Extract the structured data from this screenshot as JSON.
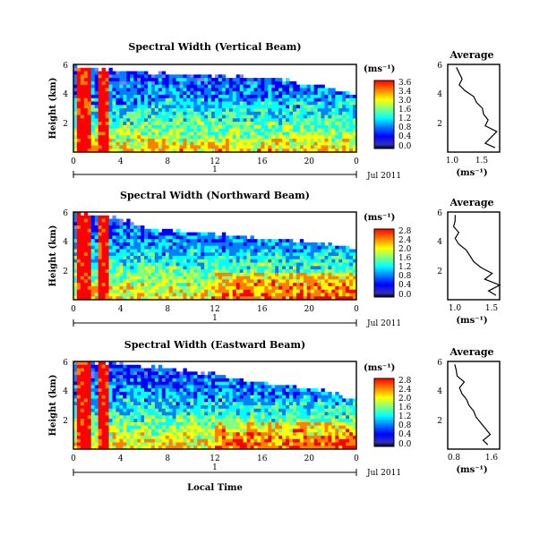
{
  "chart_data": [
    {
      "type": "heatmap",
      "title": "Spectral Width (Vertical Beam)",
      "ylabel": "Height (km)",
      "yticks": [
        "6",
        "4",
        "2"
      ],
      "ylim": [
        0,
        6
      ],
      "xticks": [
        "0",
        "4",
        "8",
        "12",
        "16",
        "20",
        "0"
      ],
      "xlim": [
        0,
        24
      ],
      "day_label": "1",
      "date_label": "Jul 2011",
      "colorbar": {
        "unit_label": "(ms⁻¹)",
        "ticks": [
          "3.6",
          "3.4",
          "3.0",
          "1.6",
          "1.2",
          "0.8",
          "0.4",
          "0.0"
        ],
        "range": [
          0.0,
          3.6
        ]
      },
      "series": [
        {
          "time_h": [
            0,
            4,
            8,
            12,
            16,
            20,
            24
          ],
          "top_km": [
            6,
            5.6,
            5.3,
            5.2,
            5.0,
            4.5,
            3.8
          ]
        },
        {
          "time_h": [
            0.3,
            0.8,
            2.4,
            3.1
          ],
          "value_note": "high"
        }
      ],
      "profile": {
        "title": "Average",
        "xticks": [
          "1.0",
          "1.5"
        ],
        "xlim": [
          0.8,
          1.7
        ],
        "yticks": [
          "6",
          "4",
          "2"
        ],
        "xlabel": "(ms⁻¹)",
        "height_km": [
          0.3,
          0.6,
          1.0,
          1.4,
          1.8,
          2.2,
          2.6,
          3.0,
          3.4,
          3.8,
          4.2,
          4.6,
          5.0,
          5.4,
          5.8
        ],
        "values": [
          1.62,
          1.45,
          1.55,
          1.65,
          1.45,
          1.5,
          1.42,
          1.4,
          1.3,
          1.25,
          1.1,
          1.0,
          1.05,
          1.0,
          0.95
        ]
      }
    },
    {
      "type": "heatmap",
      "title": "Spectral Width (Northward Beam)",
      "ylabel": "Height (km)",
      "yticks": [
        "6",
        "4",
        "2"
      ],
      "ylim": [
        0,
        6
      ],
      "xticks": [
        "0",
        "4",
        "8",
        "12",
        "16",
        "20",
        "0"
      ],
      "xlim": [
        0,
        24
      ],
      "day_label": "1",
      "date_label": "Jul 2011",
      "colorbar": {
        "unit_label": "(ms⁻¹)",
        "ticks": [
          "2.8",
          "2.4",
          "2.0",
          "1.6",
          "1.2",
          "0.8",
          "0.4",
          "0.0"
        ],
        "range": [
          0.0,
          2.8
        ]
      },
      "profile": {
        "title": "Average",
        "xticks": [
          "1.0",
          "1.5"
        ],
        "xlim": [
          0.9,
          1.6
        ],
        "yticks": [
          "6",
          "4",
          "2"
        ],
        "xlabel": "(ms⁻¹)",
        "height_km": [
          0.3,
          0.6,
          1.0,
          1.4,
          1.8,
          2.2,
          2.6,
          3.0,
          3.4,
          3.8,
          4.2,
          4.6,
          5.0,
          5.4,
          5.8
        ],
        "values": [
          1.55,
          1.45,
          1.6,
          1.4,
          1.5,
          1.35,
          1.25,
          1.2,
          1.15,
          1.05,
          1.0,
          1.05,
          0.98,
          1.0,
          1.0
        ]
      }
    },
    {
      "type": "heatmap",
      "title": "Spectral Width (Eastward Beam)",
      "ylabel": "Height (km)",
      "yticks": [
        "6",
        "4",
        "2"
      ],
      "ylim": [
        0,
        6
      ],
      "xticks": [
        "0",
        "4",
        "8",
        "12",
        "16",
        "20",
        "0"
      ],
      "xlim": [
        0,
        24
      ],
      "day_label": "1",
      "date_label": "Jul 2011",
      "xlabel": "Local Time",
      "colorbar": {
        "unit_label": "(ms⁻¹)",
        "ticks": [
          "2.8",
          "2.4",
          "2.0",
          "1.6",
          "1.2",
          "0.8",
          "0.4",
          "0.0"
        ],
        "range": [
          0.0,
          2.8
        ]
      },
      "profile": {
        "title": "Average",
        "xticks": [
          "0.8",
          "1.6"
        ],
        "xlim": [
          0.6,
          1.7
        ],
        "yticks": [
          "6",
          "4",
          "2"
        ],
        "xlabel": "(ms⁻¹)",
        "height_km": [
          0.3,
          0.6,
          1.0,
          1.4,
          1.8,
          2.2,
          2.6,
          3.0,
          3.4,
          3.8,
          4.2,
          4.6,
          5.0,
          5.4,
          5.8
        ],
        "values": [
          1.45,
          1.35,
          1.5,
          1.4,
          1.3,
          1.2,
          1.15,
          1.05,
          1.0,
          0.9,
          0.85,
          0.95,
          0.8,
          0.78,
          0.75
        ]
      }
    }
  ],
  "colors": {
    "colormap": [
      "#000000",
      "#7f7fff",
      "#0000ff",
      "#0080ff",
      "#00ffff",
      "#80ff80",
      "#ffff00",
      "#ff8000",
      "#ff0000"
    ],
    "missing": "#ffffff"
  }
}
